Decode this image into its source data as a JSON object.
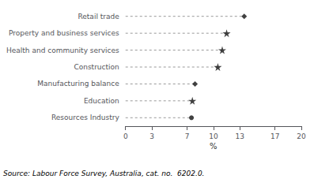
{
  "chart_data": {
    "type": "scatter",
    "orientation": "horizontal",
    "categories": [
      "Resources Industry",
      "Education",
      "Manufacturing balance",
      "Construction",
      "Health and community services",
      "Property and business services",
      "Retail trade"
    ],
    "values": [
      7.5,
      7.6,
      7.9,
      10.5,
      11.0,
      11.5,
      13.5
    ],
    "marker": [
      "circle",
      "star",
      "diamond",
      "star",
      "star",
      "star",
      "diamond"
    ],
    "color": "#111111",
    "line_style": "dashed",
    "xlabel": "%",
    "xlim": [
      0,
      20
    ],
    "xticks": [
      0,
      3,
      7,
      10,
      13,
      17,
      20
    ],
    "grid": false,
    "legend": "none",
    "annotation": "Source: Labour Force Survey, Australia, cat. no.  6202.0."
  }
}
